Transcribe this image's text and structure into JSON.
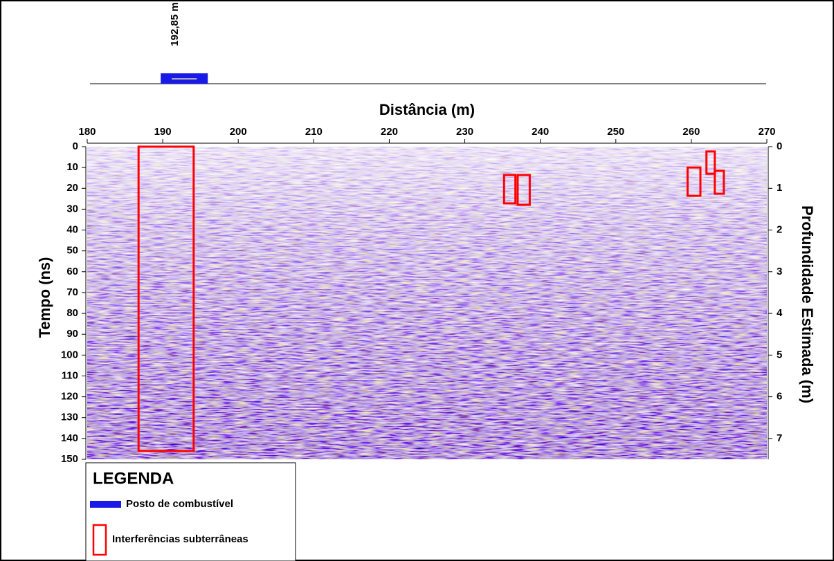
{
  "chart_data": {
    "type": "radargram",
    "x_label": "Distância (m)",
    "y_label": "Tempo (ns)",
    "y2_label": "Profundidade Estimada (m)",
    "xlim": [
      180,
      270
    ],
    "xticks": [
      180,
      190,
      200,
      210,
      220,
      230,
      240,
      250,
      260,
      270
    ],
    "ylim": [
      0,
      150
    ],
    "yticks": [
      0,
      10,
      20,
      30,
      40,
      50,
      60,
      70,
      80,
      90,
      100,
      110,
      120,
      130,
      140,
      150
    ],
    "y2lim": [
      0,
      7.5
    ],
    "y2ticks": [
      0,
      1,
      2,
      3,
      4,
      5,
      6,
      7
    ],
    "marker": {
      "x": 192.85,
      "label": "192,85 m",
      "color": "#1a1ae6"
    },
    "boxes": {
      "color": "#ff0000",
      "items": [
        {
          "x": [
            186.8,
            194.1
          ],
          "y": [
            0,
            146
          ]
        },
        {
          "x": [
            235.2,
            236.7
          ],
          "y": [
            13.6,
            27.2
          ]
        },
        {
          "x": [
            237.0,
            238.6
          ],
          "y": [
            13.6,
            27.9
          ]
        },
        {
          "x": [
            259.5,
            261.2
          ],
          "y": [
            10,
            23.6
          ]
        },
        {
          "x": [
            262.0,
            263.1
          ],
          "y": [
            2.3,
            13
          ]
        },
        {
          "x": [
            263.1,
            264.3
          ],
          "y": [
            11.6,
            22.6
          ]
        }
      ]
    },
    "legend": {
      "title": "LEGENDA",
      "items": [
        "Posto de combustível",
        "Interferências subterrâneas"
      ]
    }
  }
}
